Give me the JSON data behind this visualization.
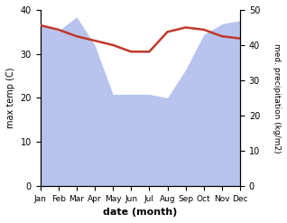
{
  "months": [
    "Jan",
    "Feb",
    "Mar",
    "Apr",
    "May",
    "Jun",
    "Jul",
    "Aug",
    "Sep",
    "Oct",
    "Nov",
    "Dec"
  ],
  "temperature": [
    36.5,
    35.5,
    34.0,
    33.0,
    32.0,
    30.5,
    30.5,
    35.0,
    36.0,
    35.5,
    34.0,
    33.5
  ],
  "precipitation": [
    46,
    44,
    48,
    40,
    26,
    26,
    26,
    25,
    33,
    43,
    46,
    47
  ],
  "temp_color": "#c0392b",
  "precip_color": "#b8c4ee",
  "temp_ylim": [
    0,
    40
  ],
  "precip_ylim": [
    0,
    50
  ],
  "temp_ylabel": "max temp (C)",
  "precip_ylabel": "med. precipitation (kg/m2)",
  "xlabel": "date (month)",
  "temp_yticks": [
    0,
    10,
    20,
    30,
    40
  ],
  "precip_yticks": [
    0,
    10,
    20,
    30,
    40,
    50
  ],
  "bg_color": "#ffffff"
}
